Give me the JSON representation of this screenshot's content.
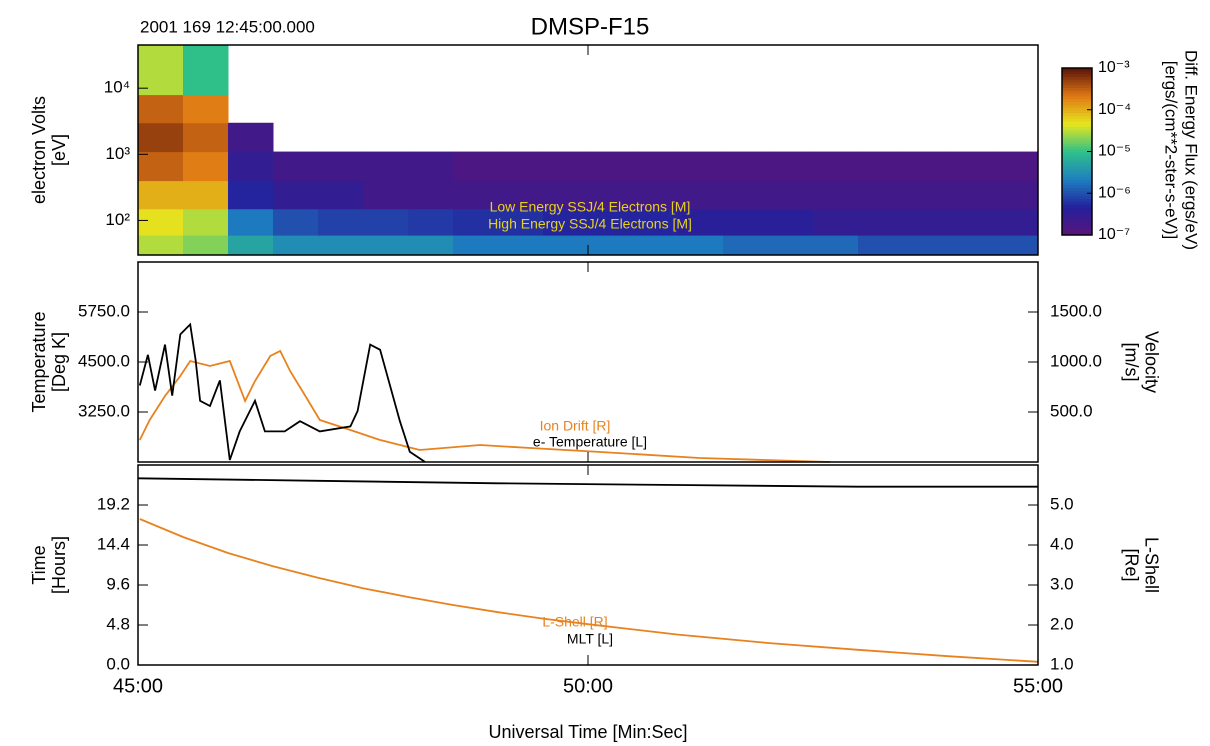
{
  "header": {
    "date": "2001 169 12:45:00.000",
    "title": "DMSP-F15"
  },
  "chart_data": [
    {
      "type": "heatmap",
      "ylabel": [
        "electron Volts",
        "[eV]"
      ],
      "xlim": [
        45,
        55
      ],
      "ylim": [
        30,
        45000
      ],
      "ylog": true,
      "yticks": [
        {
          "value": 100,
          "label": "10²"
        },
        {
          "value": 1000,
          "label": "10³"
        },
        {
          "value": 10000,
          "label": "10⁴"
        }
      ],
      "xbins": [
        45,
        45.5,
        46,
        46.5,
        47,
        47.5,
        48,
        48.5,
        49,
        49.5,
        50,
        50.5,
        51,
        51.5,
        52,
        52.5,
        53,
        53.5,
        54,
        54.5,
        55
      ],
      "ybins": [
        30,
        60,
        150,
        400,
        1100,
        3000,
        8000,
        45000
      ],
      "z": [
        [
          3e-05,
          2e-05,
          5e-06,
          3e-06,
          3e-06,
          3e-06,
          3e-06,
          2e-06,
          2e-06,
          2e-06,
          2e-06,
          2e-06,
          2e-06,
          1.5e-06,
          1.5e-06,
          1.5e-06,
          1e-06,
          1e-06,
          1e-06,
          1e-06
        ],
        [
          5e-05,
          3e-05,
          2e-06,
          1e-06,
          8e-07,
          8e-07,
          7e-07,
          6e-07,
          6e-07,
          5e-07,
          5e-07,
          5e-07,
          4e-07,
          4e-07,
          4e-07,
          3e-07,
          3e-07,
          3e-07,
          3e-07,
          3e-07
        ],
        [
          0.0001,
          0.0001,
          5e-07,
          3e-07,
          3e-07,
          2e-07,
          2e-07,
          2e-07,
          2e-07,
          2e-07,
          2e-07,
          2e-07,
          2e-07,
          2e-07,
          2e-07,
          2e-07,
          2e-07,
          2e-07,
          2e-07,
          2e-07
        ],
        [
          0.0003,
          0.0002,
          3e-07,
          2e-07,
          2e-07,
          2e-07,
          2e-07,
          1.5e-07,
          1.5e-07,
          1.5e-07,
          1.5e-07,
          1.5e-07,
          1.5e-07,
          1.5e-07,
          1.5e-07,
          1.5e-07,
          1.5e-07,
          1.5e-07,
          1.5e-07,
          1.5e-07
        ],
        [
          0.0005,
          0.0003,
          2e-07,
          null,
          null,
          null,
          null,
          null,
          null,
          null,
          null,
          null,
          null,
          null,
          null,
          null,
          null,
          null,
          null,
          null
        ],
        [
          0.0003,
          0.0002,
          null,
          null,
          null,
          null,
          null,
          null,
          null,
          null,
          null,
          null,
          null,
          null,
          null,
          null,
          null,
          null,
          null,
          null
        ],
        [
          3e-05,
          1e-05,
          null,
          null,
          null,
          null,
          null,
          null,
          null,
          null,
          null,
          null,
          null,
          null,
          null,
          null,
          null,
          null,
          null,
          null
        ]
      ],
      "zlim": [
        1e-07,
        0.001
      ],
      "zlog": true,
      "zticks": [
        {
          "value": 0.001,
          "label": "10⁻³"
        },
        {
          "value": 0.0001,
          "label": "10⁻⁴"
        },
        {
          "value": 1e-05,
          "label": "10⁻⁵"
        },
        {
          "value": 1e-06,
          "label": "10⁻⁶"
        },
        {
          "value": 1e-07,
          "label": "10⁻⁷"
        }
      ],
      "zlabel": [
        "Diff. Energy Flux (ergs/eV)",
        "[ergs/(cm**2-ster-s-eV)]"
      ],
      "colorscale": [
        "#5a1478",
        "#24209c",
        "#1e7fc0",
        "#2fc08a",
        "#e6e61e",
        "#e07814",
        "#5a140a"
      ],
      "annotations": [
        "Low Energy SSJ/4 Electrons [M]",
        "High Energy SSJ/4 Electrons [M]"
      ],
      "annotation_color": "#e6d21e"
    },
    {
      "type": "line",
      "ylabel": [
        "Temperature",
        "[Deg K]"
      ],
      "y2label": [
        "Velocity",
        "[m/s]"
      ],
      "xlim": [
        45,
        55
      ],
      "ylim": [
        2000,
        7000
      ],
      "yticks": [
        {
          "value": 3250,
          "label": "3250.0"
        },
        {
          "value": 4500,
          "label": "4500.0"
        },
        {
          "value": 5750,
          "label": "5750.0"
        }
      ],
      "y2lim": [
        0,
        2000
      ],
      "y2ticks": [
        {
          "value": 500,
          "label": "500.0"
        },
        {
          "value": 1000,
          "label": "1000.0"
        },
        {
          "value": 1500,
          "label": "1500.0"
        }
      ],
      "series": [
        {
          "name": "Ion Drift [R]",
          "color": "#e8821e",
          "axis": "y2",
          "x": [
            45.02,
            45.13,
            45.3,
            45.47,
            45.58,
            45.8,
            46.02,
            46.19,
            46.3,
            46.47,
            46.58,
            46.69,
            46.86,
            47.02,
            47.36,
            47.69,
            48.13,
            48.8,
            49.36,
            50.14,
            51.24,
            52.69
          ],
          "values": [
            220,
            420,
            660,
            860,
            1010,
            960,
            1010,
            610,
            810,
            1060,
            1110,
            910,
            660,
            420,
            320,
            220,
            120,
            170,
            140,
            100,
            40,
            0
          ]
        },
        {
          "name": "e- Temperature [L]",
          "color": "#000000",
          "x": [
            45.02,
            45.11,
            45.19,
            45.3,
            45.38,
            45.47,
            45.58,
            45.64,
            45.69,
            45.8,
            45.91,
            46.02,
            46.13,
            46.3,
            46.41,
            46.63,
            46.8,
            47.02,
            47.36,
            47.44,
            47.58,
            47.69,
            47.8,
            47.91,
            48.02,
            48.19
          ],
          "values": [
            3913,
            4680,
            3785,
            4935,
            3660,
            5190,
            5440,
            4550,
            3530,
            3400,
            4040,
            2050,
            2765,
            3530,
            2765,
            2765,
            3020,
            2765,
            2890,
            3275,
            4935,
            4805,
            3913,
            3020,
            2255,
            2000
          ]
        }
      ]
    },
    {
      "type": "line",
      "ylabel": [
        "Time",
        "[Hours]"
      ],
      "y2label": [
        "L-Shell",
        "[Re]"
      ],
      "xlabel": "Universal Time  [Min:Sec]",
      "xlim": [
        45,
        55
      ],
      "xticks": [
        {
          "value": 45,
          "label": "45:00"
        },
        {
          "value": 50,
          "label": "50:00"
        },
        {
          "value": 55,
          "label": "55:00"
        }
      ],
      "ylim": [
        0,
        24
      ],
      "yticks": [
        {
          "value": 0,
          "label": "0.0"
        },
        4.8,
        9.6,
        14.4,
        19.2
      ],
      "y2lim": [
        1,
        6
      ],
      "y2ticks": [
        {
          "value": 1,
          "label": "1.0"
        },
        {
          "value": 2,
          "label": "2.0"
        },
        {
          "value": 3,
          "label": "3.0"
        },
        {
          "value": 4,
          "label": "4.0"
        },
        {
          "value": 5,
          "label": "5.0"
        }
      ],
      "series": [
        {
          "name": "L-Shell [R]",
          "color": "#e8821e",
          "axis": "y2",
          "x": [
            45.02,
            45.5,
            46,
            46.5,
            47,
            47.5,
            48,
            48.5,
            49,
            49.5,
            50,
            51,
            52,
            53,
            54,
            55
          ],
          "values": [
            4.65,
            4.2,
            3.8,
            3.47,
            3.18,
            2.92,
            2.7,
            2.5,
            2.32,
            2.16,
            2.02,
            1.76,
            1.55,
            1.38,
            1.22,
            1.08
          ]
        },
        {
          "name": "MLT [L]",
          "color": "#000000",
          "x": [
            45,
            47,
            49,
            51,
            53,
            55
          ],
          "values": [
            22.4,
            22.1,
            21.8,
            21.6,
            21.4,
            21.4
          ]
        }
      ]
    }
  ]
}
